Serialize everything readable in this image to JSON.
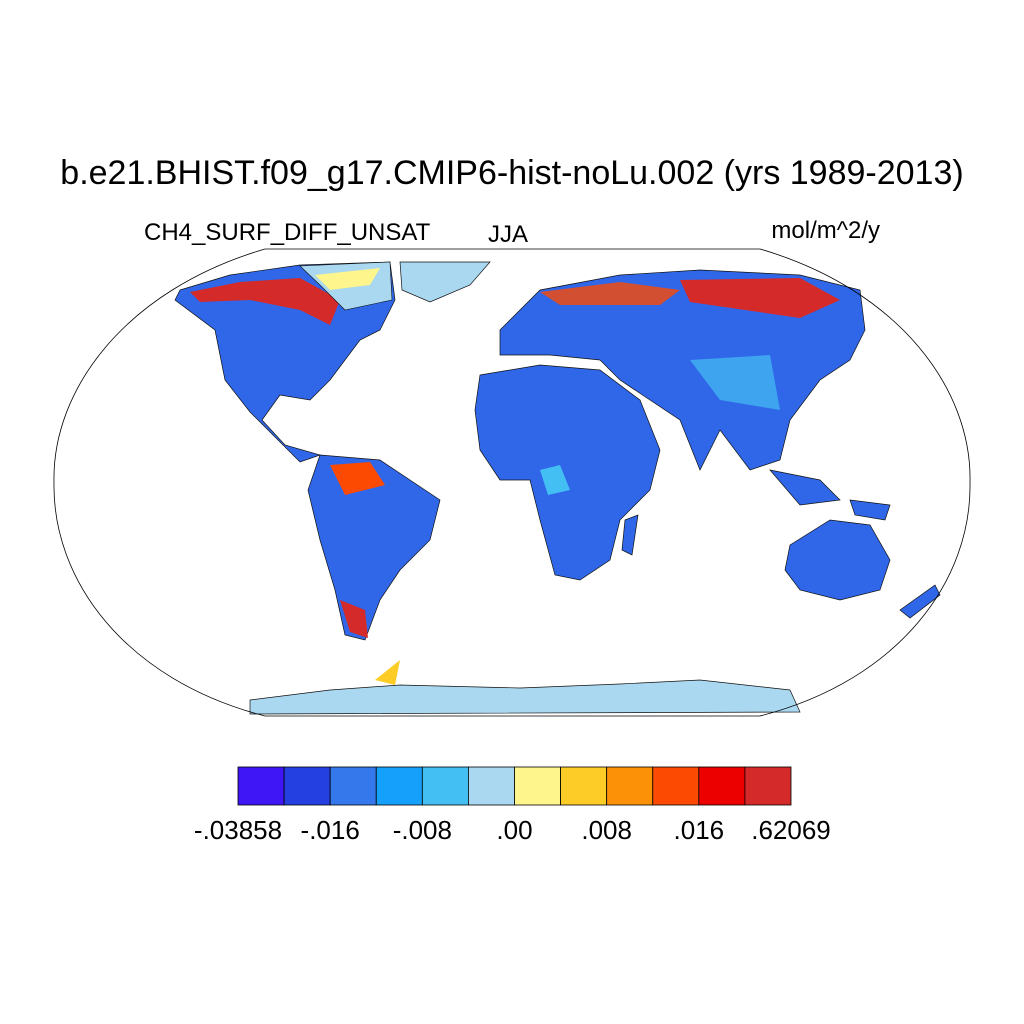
{
  "title": "b.e21.BHIST.f09_g17.CMIP6-hist-noLu.002 (yrs 1989-2013)",
  "left_subtitle": "CH4_SURF_DIFF_UNSAT",
  "center_subtitle": "JJA",
  "right_subtitle": "mol/m^2/y",
  "colorbar": {
    "colors": [
      "#3f16f5",
      "#2440e0",
      "#3478ec",
      "#14a0fb",
      "#44bff4",
      "#a9d8f0",
      "#fef58c",
      "#fdcc26",
      "#fc9108",
      "#fc4a03",
      "#ec0000",
      "#d52a2a"
    ],
    "labels": [
      {
        "value": -0.03858,
        "label": "-.03858"
      },
      {
        "value": -0.016,
        "label": "-.016"
      },
      {
        "value": -0.008,
        "label": "-.008"
      },
      {
        "value": 0,
        "label": ".00"
      },
      {
        "value": 0.008,
        "label": ".008"
      },
      {
        "value": 0.016,
        "label": ".016"
      },
      {
        "value": 0.62069,
        "label": ".62069"
      }
    ]
  }
}
